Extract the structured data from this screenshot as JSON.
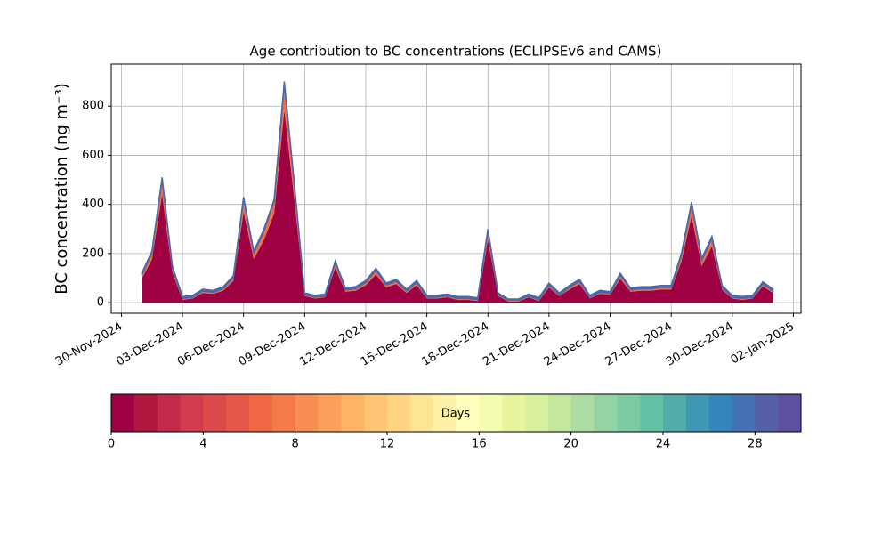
{
  "chart_data": {
    "type": "stacked-area",
    "title": "Age contribution to BC concentrations (ECLIPSEv6 and CAMS)",
    "y_label": "BC concentration (ng m⁻³)",
    "grid": true,
    "x": [
      "2024-12-01T00:00",
      "2024-12-01T12:00",
      "2024-12-02T00:00",
      "2024-12-02T12:00",
      "2024-12-03T00:00",
      "2024-12-03T12:00",
      "2024-12-04T00:00",
      "2024-12-04T12:00",
      "2024-12-05T00:00",
      "2024-12-05T12:00",
      "2024-12-06T00:00",
      "2024-12-06T12:00",
      "2024-12-07T00:00",
      "2024-12-07T12:00",
      "2024-12-08T00:00",
      "2024-12-08T12:00",
      "2024-12-09T00:00",
      "2024-12-09T12:00",
      "2024-12-10T00:00",
      "2024-12-10T12:00",
      "2024-12-11T00:00",
      "2024-12-11T12:00",
      "2024-12-12T00:00",
      "2024-12-12T12:00",
      "2024-12-13T00:00",
      "2024-12-13T12:00",
      "2024-12-14T00:00",
      "2024-12-14T12:00",
      "2024-12-15T00:00",
      "2024-12-15T12:00",
      "2024-12-16T00:00",
      "2024-12-16T12:00",
      "2024-12-17T00:00",
      "2024-12-17T12:00",
      "2024-12-18T00:00",
      "2024-12-18T12:00",
      "2024-12-19T00:00",
      "2024-12-19T12:00",
      "2024-12-20T00:00",
      "2024-12-20T12:00",
      "2024-12-21T00:00",
      "2024-12-21T12:00",
      "2024-12-22T00:00",
      "2024-12-22T12:00",
      "2024-12-23T00:00",
      "2024-12-23T12:00",
      "2024-12-24T00:00",
      "2024-12-24T12:00",
      "2024-12-25T00:00",
      "2024-12-25T12:00",
      "2024-12-26T00:00",
      "2024-12-26T12:00",
      "2024-12-27T00:00",
      "2024-12-27T12:00",
      "2024-12-28T00:00",
      "2024-12-28T12:00",
      "2024-12-29T00:00",
      "2024-12-29T12:00",
      "2024-12-30T00:00",
      "2024-12-30T12:00",
      "2024-12-31T00:00",
      "2024-12-31T12:00",
      "2025-01-01T00:00"
    ],
    "series": [
      {
        "color": "#9e0142",
        "values": [
          98,
          177,
          441,
          124,
          12,
          17,
          40,
          36,
          49,
          89,
          370,
          177,
          256,
          362,
          784,
          414,
          27,
          17,
          22,
          142,
          45,
          49,
          71,
          115,
          62,
          76,
          40,
          71,
          17,
          17,
          22,
          12,
          12,
          7,
          256,
          27,
          5,
          5,
          22,
          7,
          62,
          27,
          54,
          76,
          17,
          36,
          32,
          98,
          45,
          49,
          49,
          54,
          54,
          168,
          353,
          150,
          230,
          54,
          17,
          12,
          17,
          67,
          40
        ]
      },
      {
        "color": "#f46d43",
        "values": [
          14,
          25,
          61,
          18,
          5,
          5,
          7,
          6,
          8,
          13,
          52,
          25,
          36,
          50,
          108,
          58,
          5,
          5,
          5,
          20,
          7,
          8,
          11,
          17,
          10,
          11,
          7,
          11,
          5,
          5,
          5,
          5,
          5,
          5,
          36,
          5,
          5,
          5,
          5,
          5,
          10,
          5,
          8,
          11,
          5,
          6,
          5,
          14,
          7,
          8,
          8,
          8,
          8,
          24,
          49,
          22,
          32,
          8,
          5,
          5,
          5,
          10,
          7
        ]
      },
      {
        "color": "#4a68aa",
        "values": [
          8,
          8,
          8,
          8,
          8,
          8,
          8,
          8,
          8,
          8,
          8,
          8,
          8,
          8,
          8,
          8,
          8,
          8,
          8,
          8,
          8,
          8,
          8,
          8,
          8,
          8,
          8,
          8,
          8,
          8,
          8,
          8,
          8,
          8,
          8,
          8,
          5,
          5,
          8,
          8,
          8,
          8,
          8,
          8,
          8,
          8,
          8,
          8,
          8,
          8,
          8,
          8,
          8,
          8,
          8,
          8,
          8,
          8,
          8,
          8,
          8,
          8,
          8
        ]
      }
    ],
    "xlim": [
      "2024-11-29T12:00",
      "2025-01-02T09:00"
    ],
    "xticks": [
      {
        "value": "2024-11-30T00:00",
        "label": "30-Nov-2024"
      },
      {
        "value": "2024-12-03T00:00",
        "label": "03-Dec-2024"
      },
      {
        "value": "2024-12-06T00:00",
        "label": "06-Dec-2024"
      },
      {
        "value": "2024-12-09T00:00",
        "label": "09-Dec-2024"
      },
      {
        "value": "2024-12-12T00:00",
        "label": "12-Dec-2024"
      },
      {
        "value": "2024-12-15T00:00",
        "label": "15-Dec-2024"
      },
      {
        "value": "2024-12-18T00:00",
        "label": "18-Dec-2024"
      },
      {
        "value": "2024-12-21T00:00",
        "label": "21-Dec-2024"
      },
      {
        "value": "2024-12-24T00:00",
        "label": "24-Dec-2024"
      },
      {
        "value": "2024-12-27T00:00",
        "label": "27-Dec-2024"
      },
      {
        "value": "2024-12-30T00:00",
        "label": "30-Dec-2024"
      },
      {
        "value": "2025-01-02T00:00",
        "label": "02-Jan-2025"
      }
    ],
    "ylim": [
      -43,
      971
    ],
    "yticks": [
      0,
      200,
      400,
      600,
      800
    ],
    "colorbar": {
      "label": "Days",
      "lim": [
        0,
        30
      ],
      "ticks": [
        0,
        4,
        8,
        12,
        16,
        20,
        24,
        28
      ],
      "colors": [
        "#9e0142",
        "#b0173f",
        "#c2294a",
        "#d33c4e",
        "#dd4a4c",
        "#e65848",
        "#f06744",
        "#f57a4a",
        "#f98e52",
        "#fca15b",
        "#fdb466",
        "#fdc574",
        "#fed683",
        "#fee593",
        "#fff1a8",
        "#fffebe",
        "#f4faaf",
        "#e8f59c",
        "#d8ef9b",
        "#c4e79e",
        "#addda2",
        "#94d4a4",
        "#7ccba5",
        "#65c1a5",
        "#52ada8",
        "#3f99b4",
        "#3585bb",
        "#4371b2",
        "#5560a9",
        "#5e4fa2"
      ]
    }
  }
}
